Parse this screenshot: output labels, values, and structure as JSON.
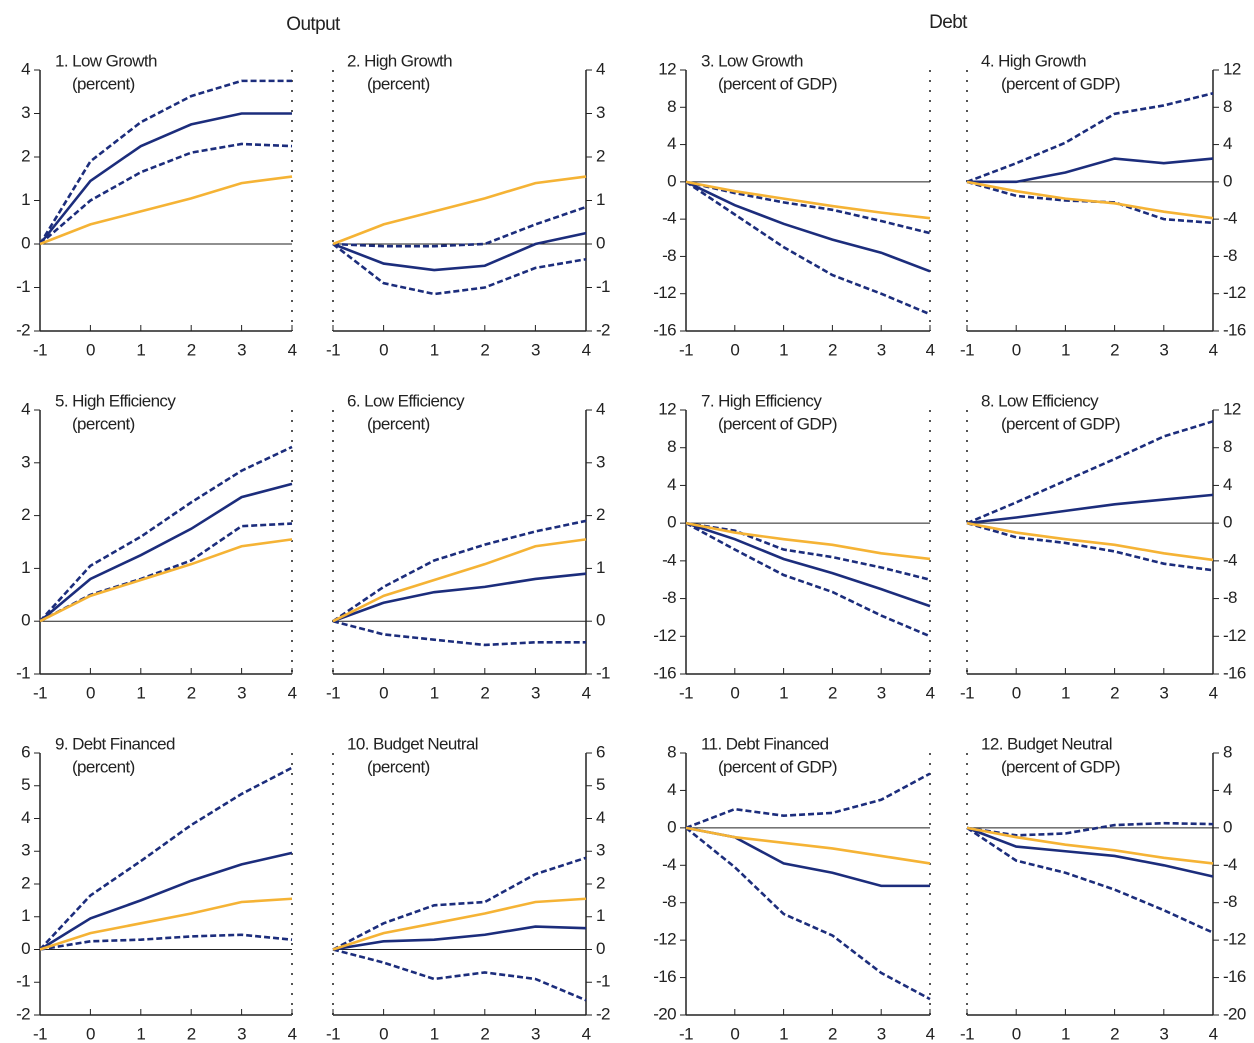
{
  "headings": [
    "Output",
    "Debt"
  ],
  "chart_data": [
    {
      "type": "line",
      "title": "1. Low Growth",
      "subtitle": "(percent)",
      "x": [
        -1,
        0,
        1,
        2,
        3,
        4
      ],
      "xlim": [
        -1,
        4
      ],
      "xticks": [
        -1,
        0,
        1,
        2,
        3,
        4
      ],
      "ylim": [
        -2,
        4
      ],
      "yticks": [
        -2,
        -1,
        0,
        1,
        2,
        3,
        4
      ],
      "y_axis_side": "left",
      "zero_line": true,
      "series": [
        {
          "color": "#1c2d7c",
          "line_style": "dashed",
          "values": [
            0,
            1.9,
            2.8,
            3.4,
            3.75,
            3.75
          ]
        },
        {
          "color": "#1c2d7c",
          "line_style": "solid",
          "values": [
            0,
            1.45,
            2.25,
            2.75,
            3.0,
            3.0
          ]
        },
        {
          "color": "#1c2d7c",
          "line_style": "dashed",
          "values": [
            0,
            1.0,
            1.65,
            2.1,
            2.3,
            2.25
          ]
        },
        {
          "color": "#f5b335",
          "line_style": "solid",
          "values": [
            0,
            0.45,
            0.75,
            1.05,
            1.4,
            1.55
          ]
        }
      ]
    },
    {
      "type": "line",
      "title": "2. High Growth",
      "subtitle": "(percent)",
      "x": [
        -1,
        0,
        1,
        2,
        3,
        4
      ],
      "xlim": [
        -1,
        4
      ],
      "xticks": [
        -1,
        0,
        1,
        2,
        3,
        4
      ],
      "ylim": [
        -2,
        4
      ],
      "yticks": [
        -2,
        -1,
        0,
        1,
        2,
        3,
        4
      ],
      "y_axis_side": "right",
      "zero_line": true,
      "series": [
        {
          "color": "#1c2d7c",
          "line_style": "dashed",
          "values": [
            0,
            -0.05,
            -0.05,
            0,
            0.45,
            0.85
          ]
        },
        {
          "color": "#1c2d7c",
          "line_style": "solid",
          "values": [
            0,
            -0.45,
            -0.6,
            -0.5,
            0,
            0.25
          ]
        },
        {
          "color": "#1c2d7c",
          "line_style": "dashed",
          "values": [
            0,
            -0.9,
            -1.15,
            -1.0,
            -0.55,
            -0.35
          ]
        },
        {
          "color": "#f5b335",
          "line_style": "solid",
          "values": [
            0,
            0.45,
            0.75,
            1.05,
            1.4,
            1.55
          ]
        }
      ]
    },
    {
      "type": "line",
      "title": "3. Low Growth",
      "subtitle": "(percent of GDP)",
      "x": [
        -1,
        0,
        1,
        2,
        3,
        4
      ],
      "xlim": [
        -1,
        4
      ],
      "xticks": [
        -1,
        0,
        1,
        2,
        3,
        4
      ],
      "ylim": [
        -16,
        12
      ],
      "yticks": [
        -16,
        -12,
        -8,
        -4,
        0,
        4,
        8,
        12
      ],
      "y_axis_side": "left",
      "zero_line": true,
      "series": [
        {
          "color": "#1c2d7c",
          "line_style": "dashed",
          "values": [
            0,
            -1.2,
            -2.2,
            -3.0,
            -4.2,
            -5.5
          ]
        },
        {
          "color": "#1c2d7c",
          "line_style": "solid",
          "values": [
            0,
            -2.5,
            -4.5,
            -6.2,
            -7.6,
            -9.6
          ]
        },
        {
          "color": "#1c2d7c",
          "line_style": "dashed",
          "values": [
            0,
            -3.5,
            -7,
            -10,
            -12,
            -14.2
          ]
        },
        {
          "color": "#f5b335",
          "line_style": "solid",
          "values": [
            0,
            -1,
            -1.8,
            -2.6,
            -3.3,
            -3.9
          ]
        }
      ]
    },
    {
      "type": "line",
      "title": "4. High Growth",
      "subtitle": "(percent of GDP)",
      "x": [
        -1,
        0,
        1,
        2,
        3,
        4
      ],
      "xlim": [
        -1,
        4
      ],
      "xticks": [
        -1,
        0,
        1,
        2,
        3,
        4
      ],
      "ylim": [
        -16,
        12
      ],
      "yticks": [
        -16,
        -12,
        -8,
        -4,
        0,
        4,
        8,
        12
      ],
      "y_axis_side": "right",
      "zero_line": true,
      "series": [
        {
          "color": "#1c2d7c",
          "line_style": "dashed",
          "values": [
            0,
            2,
            4.2,
            7.3,
            8.2,
            9.5
          ]
        },
        {
          "color": "#1c2d7c",
          "line_style": "solid",
          "values": [
            0,
            0,
            1,
            2.5,
            2,
            2.5
          ]
        },
        {
          "color": "#1c2d7c",
          "line_style": "dashed",
          "values": [
            0,
            -1.5,
            -2,
            -2.2,
            -4,
            -4.4
          ]
        },
        {
          "color": "#f5b335",
          "line_style": "solid",
          "values": [
            0,
            -1,
            -1.8,
            -2.3,
            -3.2,
            -3.9
          ]
        }
      ]
    },
    {
      "type": "line",
      "title": "5. High Efficiency",
      "subtitle": "(percent)",
      "x": [
        -1,
        0,
        1,
        2,
        3,
        4
      ],
      "xlim": [
        -1,
        4
      ],
      "xticks": [
        -1,
        0,
        1,
        2,
        3,
        4
      ],
      "ylim": [
        -1,
        4
      ],
      "yticks": [
        -1,
        0,
        1,
        2,
        3,
        4
      ],
      "y_axis_side": "left",
      "zero_line": true,
      "series": [
        {
          "color": "#1c2d7c",
          "line_style": "dashed",
          "values": [
            0,
            1.05,
            1.6,
            2.25,
            2.85,
            3.3
          ]
        },
        {
          "color": "#1c2d7c",
          "line_style": "solid",
          "values": [
            0,
            0.8,
            1.25,
            1.75,
            2.35,
            2.6
          ]
        },
        {
          "color": "#1c2d7c",
          "line_style": "dashed",
          "values": [
            0,
            0.5,
            0.8,
            1.15,
            1.8,
            1.85
          ]
        },
        {
          "color": "#f5b335",
          "line_style": "solid",
          "values": [
            0,
            0.48,
            0.78,
            1.08,
            1.42,
            1.55
          ]
        }
      ]
    },
    {
      "type": "line",
      "title": "6. Low Efficiency",
      "subtitle": "(percent)",
      "x": [
        -1,
        0,
        1,
        2,
        3,
        4
      ],
      "xlim": [
        -1,
        4
      ],
      "xticks": [
        -1,
        0,
        1,
        2,
        3,
        4
      ],
      "ylim": [
        -1,
        4
      ],
      "yticks": [
        -1,
        0,
        1,
        2,
        3,
        4
      ],
      "y_axis_side": "right",
      "zero_line": true,
      "series": [
        {
          "color": "#1c2d7c",
          "line_style": "dashed",
          "values": [
            0,
            0.65,
            1.15,
            1.45,
            1.7,
            1.9
          ]
        },
        {
          "color": "#1c2d7c",
          "line_style": "solid",
          "values": [
            0,
            0.35,
            0.55,
            0.65,
            0.8,
            0.9
          ]
        },
        {
          "color": "#1c2d7c",
          "line_style": "dashed",
          "values": [
            0,
            -0.25,
            -0.35,
            -0.45,
            -0.4,
            -0.4
          ]
        },
        {
          "color": "#f5b335",
          "line_style": "solid",
          "values": [
            0,
            0.48,
            0.78,
            1.08,
            1.42,
            1.55
          ]
        }
      ]
    },
    {
      "type": "line",
      "title": "7. High Efficiency",
      "subtitle": "(percent of GDP)",
      "x": [
        -1,
        0,
        1,
        2,
        3,
        4
      ],
      "xlim": [
        -1,
        4
      ],
      "xticks": [
        -1,
        0,
        1,
        2,
        3,
        4
      ],
      "ylim": [
        -16,
        12
      ],
      "yticks": [
        -16,
        -12,
        -8,
        -4,
        0,
        4,
        8,
        12
      ],
      "y_axis_side": "left",
      "zero_line": true,
      "series": [
        {
          "color": "#1c2d7c",
          "line_style": "dashed",
          "values": [
            0,
            -0.8,
            -2.8,
            -3.6,
            -4.7,
            -6.0
          ]
        },
        {
          "color": "#1c2d7c",
          "line_style": "solid",
          "values": [
            0,
            -1.7,
            -3.8,
            -5.3,
            -7,
            -8.8
          ]
        },
        {
          "color": "#1c2d7c",
          "line_style": "dashed",
          "values": [
            0,
            -2.8,
            -5.5,
            -7.3,
            -9.8,
            -12
          ]
        },
        {
          "color": "#f5b335",
          "line_style": "solid",
          "values": [
            0,
            -1,
            -1.7,
            -2.3,
            -3.2,
            -3.8
          ]
        }
      ]
    },
    {
      "type": "line",
      "title": "8. Low Efficiency",
      "subtitle": "(percent of GDP)",
      "x": [
        -1,
        0,
        1,
        2,
        3,
        4
      ],
      "xlim": [
        -1,
        4
      ],
      "xticks": [
        -1,
        0,
        1,
        2,
        3,
        4
      ],
      "ylim": [
        -16,
        12
      ],
      "yticks": [
        -16,
        -12,
        -8,
        -4,
        0,
        4,
        8,
        12
      ],
      "y_axis_side": "right",
      "zero_line": true,
      "series": [
        {
          "color": "#1c2d7c",
          "line_style": "dashed",
          "values": [
            0,
            2.2,
            4.5,
            6.8,
            9.2,
            10.8
          ]
        },
        {
          "color": "#1c2d7c",
          "line_style": "solid",
          "values": [
            0,
            0.6,
            1.3,
            2,
            2.5,
            3
          ]
        },
        {
          "color": "#1c2d7c",
          "line_style": "dashed",
          "values": [
            0,
            -1.5,
            -2.1,
            -3,
            -4.3,
            -5
          ]
        },
        {
          "color": "#f5b335",
          "line_style": "solid",
          "values": [
            0,
            -1,
            -1.7,
            -2.3,
            -3.2,
            -3.9
          ]
        }
      ]
    },
    {
      "type": "line",
      "title": "9. Debt Financed",
      "subtitle": "(percent)",
      "x": [
        -1,
        0,
        1,
        2,
        3,
        4
      ],
      "xlim": [
        -1,
        4
      ],
      "xticks": [
        -1,
        0,
        1,
        2,
        3,
        4
      ],
      "ylim": [
        -2,
        6
      ],
      "yticks": [
        -2,
        -1,
        0,
        1,
        2,
        3,
        4,
        5,
        6
      ],
      "y_axis_side": "left",
      "zero_line": true,
      "series": [
        {
          "color": "#1c2d7c",
          "line_style": "dashed",
          "values": [
            0,
            1.65,
            2.7,
            3.8,
            4.75,
            5.55
          ]
        },
        {
          "color": "#1c2d7c",
          "line_style": "solid",
          "values": [
            0,
            0.95,
            1.5,
            2.1,
            2.6,
            2.95
          ]
        },
        {
          "color": "#1c2d7c",
          "line_style": "dashed",
          "values": [
            0,
            0.25,
            0.3,
            0.4,
            0.45,
            0.3
          ]
        },
        {
          "color": "#f5b335",
          "line_style": "solid",
          "values": [
            0,
            0.5,
            0.8,
            1.1,
            1.45,
            1.55
          ]
        }
      ]
    },
    {
      "type": "line",
      "title": "10. Budget Neutral",
      "subtitle": "(percent)",
      "x": [
        -1,
        0,
        1,
        2,
        3,
        4
      ],
      "xlim": [
        -1,
        4
      ],
      "xticks": [
        -1,
        0,
        1,
        2,
        3,
        4
      ],
      "ylim": [
        -2,
        6
      ],
      "yticks": [
        -2,
        -1,
        0,
        1,
        2,
        3,
        4,
        5,
        6
      ],
      "y_axis_side": "right",
      "zero_line": true,
      "series": [
        {
          "color": "#1c2d7c",
          "line_style": "dashed",
          "values": [
            0,
            0.8,
            1.35,
            1.45,
            2.3,
            2.8
          ]
        },
        {
          "color": "#1c2d7c",
          "line_style": "solid",
          "values": [
            0,
            0.25,
            0.3,
            0.45,
            0.7,
            0.65
          ]
        },
        {
          "color": "#1c2d7c",
          "line_style": "dashed",
          "values": [
            0,
            -0.4,
            -0.9,
            -0.7,
            -0.9,
            -1.55
          ]
        },
        {
          "color": "#f5b335",
          "line_style": "solid",
          "values": [
            0,
            0.5,
            0.8,
            1.1,
            1.45,
            1.55
          ]
        }
      ]
    },
    {
      "type": "line",
      "title": "11. Debt Financed",
      "subtitle": "(percent of GDP)",
      "x": [
        -1,
        0,
        1,
        2,
        3,
        4
      ],
      "xlim": [
        -1,
        4
      ],
      "xticks": [
        -1,
        0,
        1,
        2,
        3,
        4
      ],
      "ylim": [
        -20,
        8
      ],
      "yticks": [
        -20,
        -16,
        -12,
        -8,
        -4,
        0,
        4,
        8
      ],
      "y_axis_side": "left",
      "zero_line": true,
      "series": [
        {
          "color": "#1c2d7c",
          "line_style": "dashed",
          "values": [
            0,
            2,
            1.3,
            1.6,
            3,
            5.8
          ]
        },
        {
          "color": "#1c2d7c",
          "line_style": "solid",
          "values": [
            0,
            -1,
            -3.8,
            -4.8,
            -6.2,
            -6.2
          ]
        },
        {
          "color": "#1c2d7c",
          "line_style": "dashed",
          "values": [
            0,
            -4.2,
            -9.2,
            -11.5,
            -15.5,
            -18.3
          ]
        },
        {
          "color": "#f5b335",
          "line_style": "solid",
          "values": [
            0,
            -1,
            -1.6,
            -2.2,
            -3,
            -3.8
          ]
        }
      ]
    },
    {
      "type": "line",
      "title": "12. Budget Neutral",
      "subtitle": "(percent of GDP)",
      "x": [
        -1,
        0,
        1,
        2,
        3,
        4
      ],
      "xlim": [
        -1,
        4
      ],
      "xticks": [
        -1,
        0,
        1,
        2,
        3,
        4
      ],
      "ylim": [
        -20,
        8
      ],
      "yticks": [
        -20,
        -16,
        -12,
        -8,
        -4,
        0,
        4,
        8
      ],
      "y_axis_side": "right",
      "zero_line": true,
      "series": [
        {
          "color": "#1c2d7c",
          "line_style": "dashed",
          "values": [
            0,
            -0.8,
            -0.6,
            0.3,
            0.5,
            0.4
          ]
        },
        {
          "color": "#1c2d7c",
          "line_style": "solid",
          "values": [
            0,
            -2,
            -2.5,
            -3,
            -4,
            -5.2
          ]
        },
        {
          "color": "#1c2d7c",
          "line_style": "dashed",
          "values": [
            0,
            -3.5,
            -4.8,
            -6.6,
            -8.8,
            -11.2
          ]
        },
        {
          "color": "#f5b335",
          "line_style": "solid",
          "values": [
            0,
            -1,
            -1.8,
            -2.4,
            -3.2,
            -3.8
          ]
        }
      ]
    }
  ]
}
